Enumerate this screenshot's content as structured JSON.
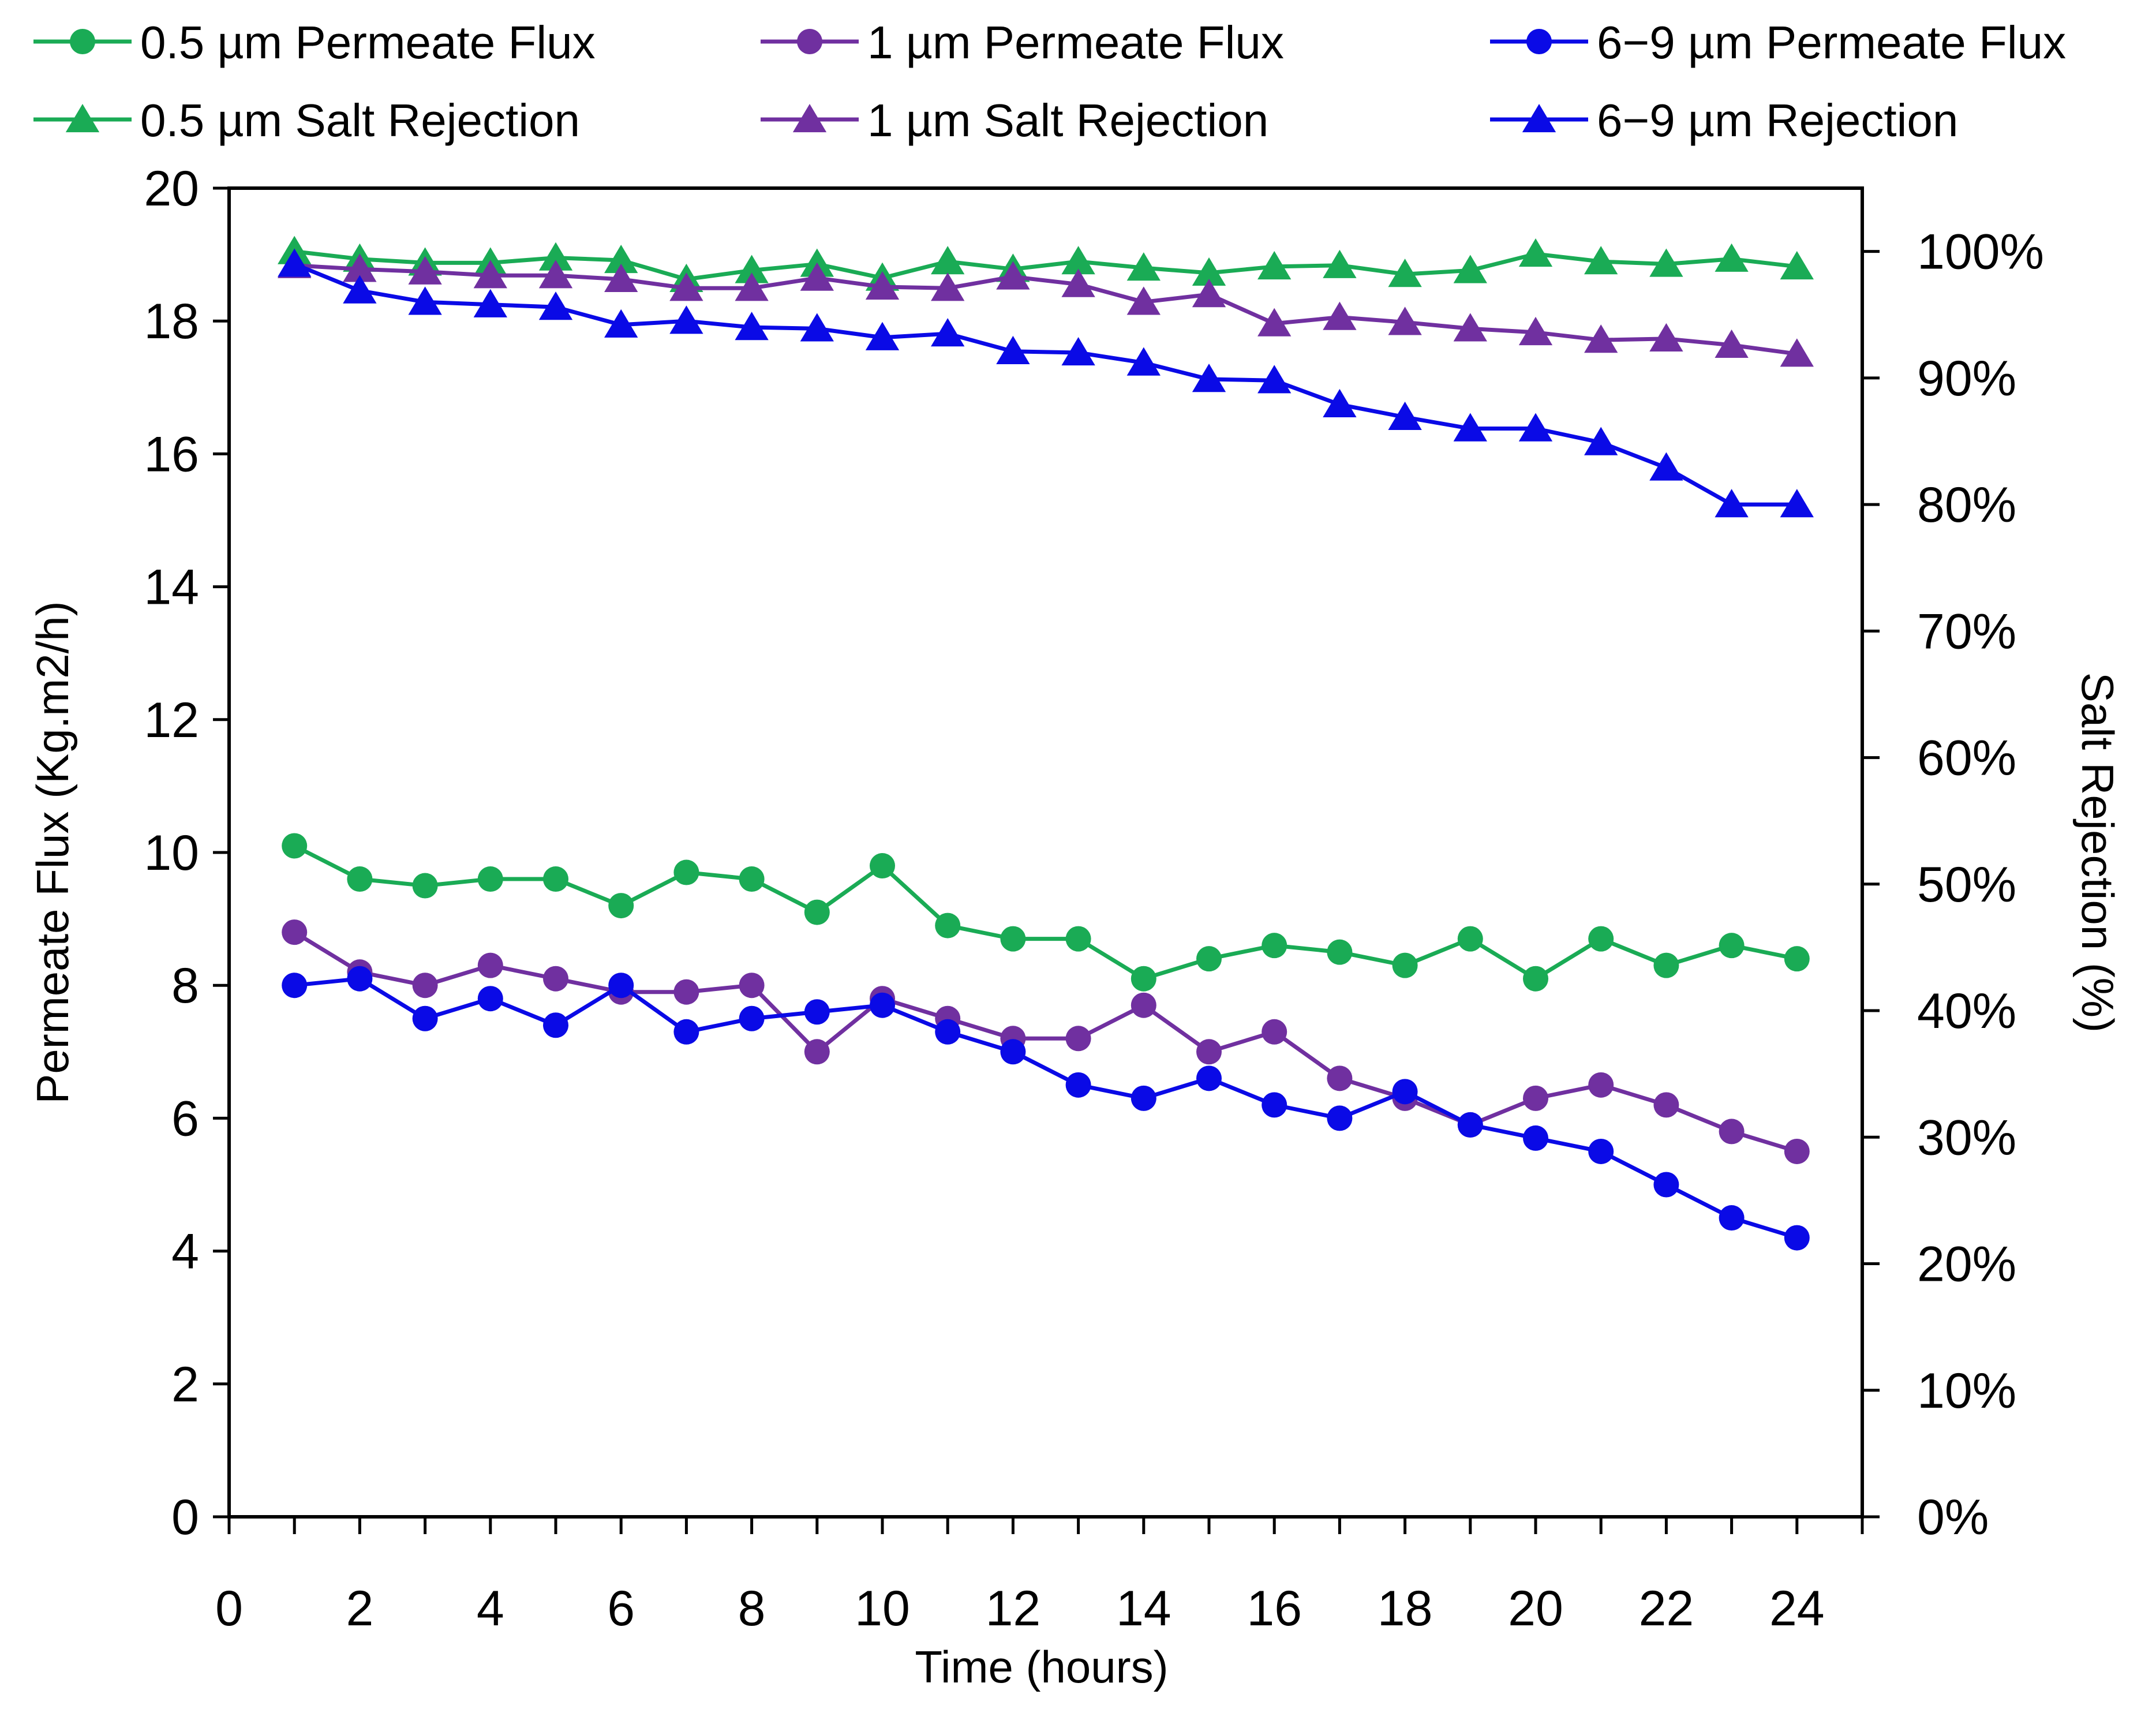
{
  "chart_data": {
    "type": "line",
    "title": "",
    "xlabel": "Time (hours)",
    "ylabel": "Permeate Flux (Kg.m2/h)",
    "y2label": "Salt Rejection (%)",
    "xlim": [
      0,
      25
    ],
    "ylim": [
      0,
      20
    ],
    "y2lim": [
      0,
      105
    ],
    "grid": false,
    "legend_position": "top",
    "x_ticks": [
      "0",
      "2",
      "4",
      "6",
      "8",
      "10",
      "12",
      "14",
      "16",
      "18",
      "20",
      "22",
      "24"
    ],
    "y_ticks": [
      "0",
      "2",
      "4",
      "6",
      "8",
      "10",
      "12",
      "14",
      "16",
      "18",
      "20"
    ],
    "y2_ticks": [
      "0%",
      "10%",
      "20%",
      "30%",
      "40%",
      "50%",
      "60%",
      "70%",
      "80%",
      "90%",
      "100%"
    ],
    "x": [
      1,
      2,
      3,
      4,
      5,
      6,
      7,
      8,
      9,
      10,
      11,
      12,
      13,
      14,
      15,
      16,
      17,
      18,
      19,
      20,
      21,
      22,
      23,
      24
    ],
    "series": [
      {
        "name": "0.5 µm Permeate Flux",
        "axis": "left",
        "marker": "circle",
        "color": "#1aab55",
        "values": [
          10.1,
          9.6,
          9.5,
          9.6,
          9.6,
          9.2,
          9.7,
          9.6,
          9.1,
          9.8,
          8.9,
          8.7,
          8.7,
          8.1,
          8.4,
          8.6,
          8.5,
          8.3,
          8.7,
          8.1,
          8.7,
          8.3,
          8.6,
          8.4
        ]
      },
      {
        "name": "1 µm Permeate Flux",
        "axis": "left",
        "marker": "circle",
        "color": "#7030a0",
        "values": [
          8.8,
          8.2,
          8.0,
          8.3,
          8.1,
          7.9,
          7.9,
          8.0,
          7.0,
          7.8,
          7.5,
          7.2,
          7.2,
          7.7,
          7.0,
          7.3,
          6.6,
          6.3,
          5.9,
          6.3,
          6.5,
          6.2,
          5.8,
          5.5
        ]
      },
      {
        "name": "6−9 µm Permeate Flux",
        "axis": "left",
        "marker": "circle",
        "color": "#0a0ae6",
        "values": [
          8.0,
          8.1,
          7.5,
          7.8,
          7.4,
          8.0,
          7.3,
          7.5,
          7.6,
          7.7,
          7.3,
          7.0,
          6.5,
          6.3,
          6.6,
          6.2,
          6.0,
          6.4,
          5.9,
          5.7,
          5.5,
          5.0,
          4.5,
          4.2
        ]
      },
      {
        "name": "0.5 µm Salt Rejection",
        "axis": "right",
        "marker": "triangle",
        "color": "#1aab55",
        "values": [
          100,
          99.4,
          99.1,
          99.1,
          99.5,
          99.3,
          97.8,
          98.5,
          99.0,
          97.9,
          99.2,
          98.6,
          99.2,
          98.7,
          98.3,
          98.8,
          98.9,
          98.2,
          98.5,
          99.8,
          99.2,
          99.0,
          99.4,
          98.8
        ]
      },
      {
        "name": "1 µm Salt Rejection",
        "axis": "right",
        "marker": "triangle",
        "color": "#7030a0",
        "values": [
          98.9,
          98.6,
          98.4,
          98.1,
          98.1,
          97.8,
          97.1,
          97.1,
          97.9,
          97.2,
          97.1,
          98.0,
          97.4,
          96.0,
          96.6,
          94.3,
          94.8,
          94.4,
          93.9,
          93.6,
          93.0,
          93.1,
          92.6,
          91.9
        ]
      },
      {
        "name": "6−9 µm Rejection",
        "axis": "right",
        "marker": "triangle",
        "color": "#0a0ae6",
        "values": [
          99.0,
          96.9,
          96.0,
          95.8,
          95.6,
          94.2,
          94.5,
          94.0,
          93.9,
          93.2,
          93.5,
          92.1,
          92.0,
          91.2,
          89.9,
          89.8,
          87.9,
          86.9,
          86.0,
          86.0,
          84.9,
          82.9,
          80.0,
          80.0
        ]
      }
    ]
  }
}
